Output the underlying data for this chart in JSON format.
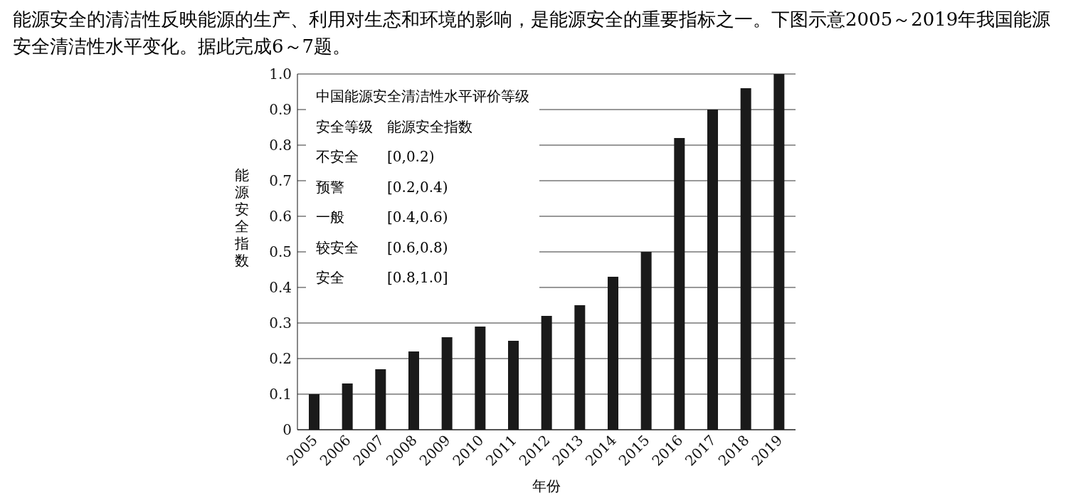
{
  "chart_data": {
    "type": "bar",
    "title": "能源安全的清洁性反映能源的生产、利用对生态和环境的影响，是能源安全的重要指标之一。下图示意2005～2019年我国能源安全清洁性水平变化。据此完成6～7题。",
    "xlabel": "年份",
    "ylabel": "能源安全指数",
    "categories": [
      "2005",
      "2006",
      "2007",
      "2008",
      "2009",
      "2010",
      "2011",
      "2012",
      "2013",
      "2014",
      "2015",
      "2016",
      "2017",
      "2018",
      "2019"
    ],
    "values": [
      0.1,
      0.13,
      0.17,
      0.22,
      0.26,
      0.29,
      0.25,
      0.32,
      0.35,
      0.43,
      0.5,
      0.82,
      0.9,
      0.96,
      1.0
    ],
    "color": "#1a1a1a",
    "ylim": [
      0,
      1
    ],
    "yticks": [
      0,
      0.1,
      0.2,
      0.3,
      0.4,
      0.5,
      0.6,
      0.7,
      0.8,
      0.9,
      {
        "value": 1,
        "label": "1.0"
      }
    ],
    "grid": "y",
    "annotations": [
      "中国能源安全清洁性水平评价等级",
      "安全等级　能源安全指数",
      "不安全　　[0,0.2)",
      "预警　　　[0.2,0.4)",
      "一般　　　[0.4,0.6)",
      "较安全　　[0.6,0.8)",
      "安全　　　[0.8,1.0]"
    ]
  }
}
